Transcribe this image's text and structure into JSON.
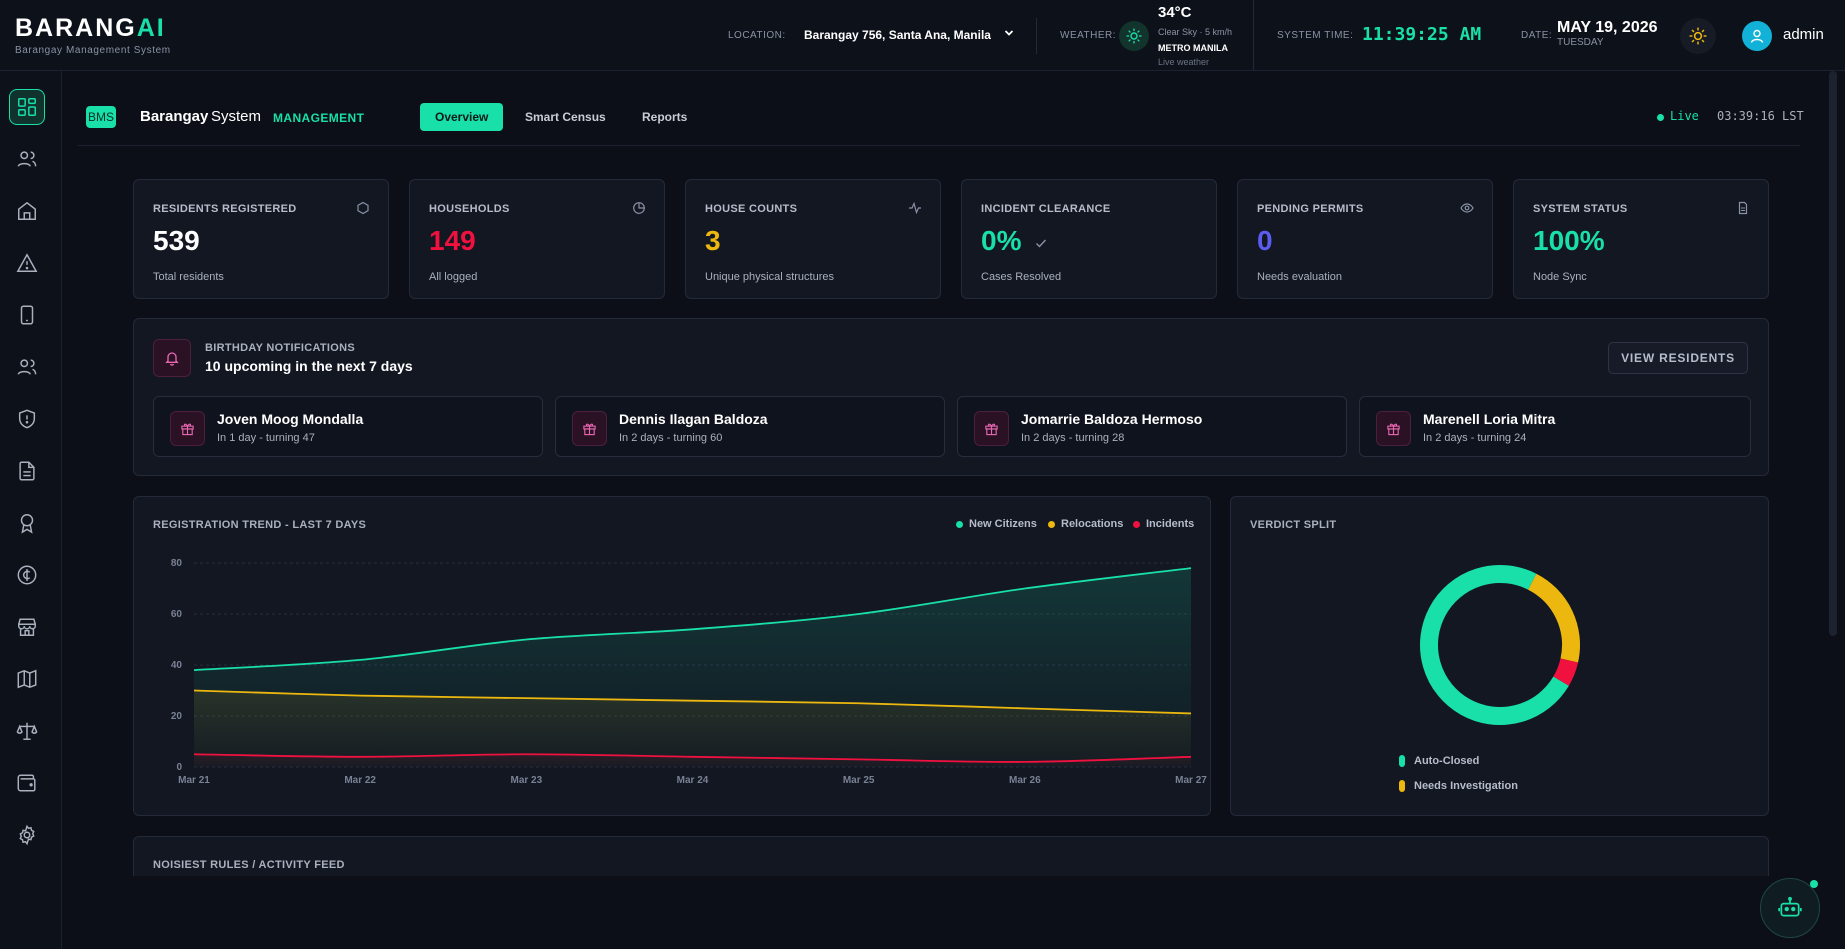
{
  "header": {
    "logo_main": "BARANG",
    "logo_accent": "AI",
    "logo_sub": "Barangay Management System",
    "location_label": "LOCATION:",
    "location_value": "Barangay 756, Santa Ana, Manila",
    "weather_label": "WEATHER:",
    "weather_temp": "34°C",
    "weather_desc": "Clear Sky · 5 km/h",
    "weather_city": "METRO MANILA",
    "weather_live": "Live weather",
    "system_time_label": "SYSTEM TIME:",
    "system_time": "11:39:25 AM",
    "date_label": "DATE:",
    "date_value": "MAY 19, 2026",
    "date_day": "TUESDAY",
    "user": "admin"
  },
  "subheader": {
    "badge": "BMS",
    "brand_a": "Barangay",
    "brand_b": "System",
    "brand_tag": "MANAGEMENT",
    "tabs": [
      "Overview",
      "Smart Census",
      "Reports"
    ],
    "live": "Live",
    "live_time": "03:39:16 LST"
  },
  "stats": [
    {
      "label": "RESIDENTS REGISTERED",
      "value": "539",
      "sub": "Total residents",
      "color": "#ffffff"
    },
    {
      "label": "HOUSEHOLDS",
      "value": "149",
      "sub": "All logged",
      "color": "#f0113f"
    },
    {
      "label": "HOUSE COUNTS",
      "value": "3",
      "sub": "Unique physical structures",
      "color": "#ecb80f"
    },
    {
      "label": "INCIDENT CLEARANCE",
      "value": "0%",
      "sub": "Cases Resolved",
      "color": "#19dfa9"
    },
    {
      "label": "PENDING PERMITS",
      "value": "0",
      "sub": "Needs evaluation",
      "color": "#5b5cf0"
    },
    {
      "label": "SYSTEM STATUS",
      "value": "100%",
      "sub": "Node Sync",
      "color": "#19dfa9"
    }
  ],
  "birthdays": {
    "label": "BIRTHDAY NOTIFICATIONS",
    "count_text": "10 upcoming in the next 7 days",
    "view_button": "VIEW RESIDENTS",
    "items": [
      {
        "name": "Joven Moog Mondalla",
        "when": "In 1 day - turning 47"
      },
      {
        "name": "Dennis Ilagan Baldoza",
        "when": "In 2 days - turning 60"
      },
      {
        "name": "Jomarrie Baldoza Hermoso",
        "when": "In 2 days - turning 28"
      },
      {
        "name": "Marenell Loria Mitra",
        "when": "In 2 days - turning 24"
      }
    ]
  },
  "trend": {
    "title": "REGISTRATION TREND - LAST 7 DAYS",
    "chart_data": {
      "type": "area",
      "x": [
        "Mar 21",
        "Mar 22",
        "Mar 23",
        "Mar 24",
        "Mar 25",
        "Mar 26",
        "Mar 27"
      ],
      "ylim": [
        0,
        80
      ],
      "yticks": [
        0,
        20,
        40,
        60,
        80
      ],
      "grid": true,
      "legend": "top-right",
      "series": [
        {
          "name": "New Citizens",
          "color": "#19dfa9",
          "values": [
            38,
            42,
            50,
            54,
            60,
            70,
            78
          ]
        },
        {
          "name": "Relocations",
          "color": "#ecb80f",
          "values": [
            30,
            28,
            27,
            26,
            25,
            23,
            21
          ]
        },
        {
          "name": "Incidents",
          "color": "#f0113f",
          "values": [
            5,
            4,
            5,
            4,
            3,
            2,
            4
          ]
        }
      ]
    }
  },
  "verdict": {
    "title": "VERDICT SPLIT",
    "chart_data": {
      "type": "pie",
      "slices": [
        {
          "name": "Auto-Closed",
          "value": 74,
          "color": "#19dfa9"
        },
        {
          "name": "Needs Investigation",
          "value": 21,
          "color": "#ecb80f"
        },
        {
          "name": "",
          "value": 5,
          "color": "#f0113f"
        }
      ]
    }
  },
  "activity": {
    "title": "NOISIEST RULES / ACTIVITY FEED"
  }
}
